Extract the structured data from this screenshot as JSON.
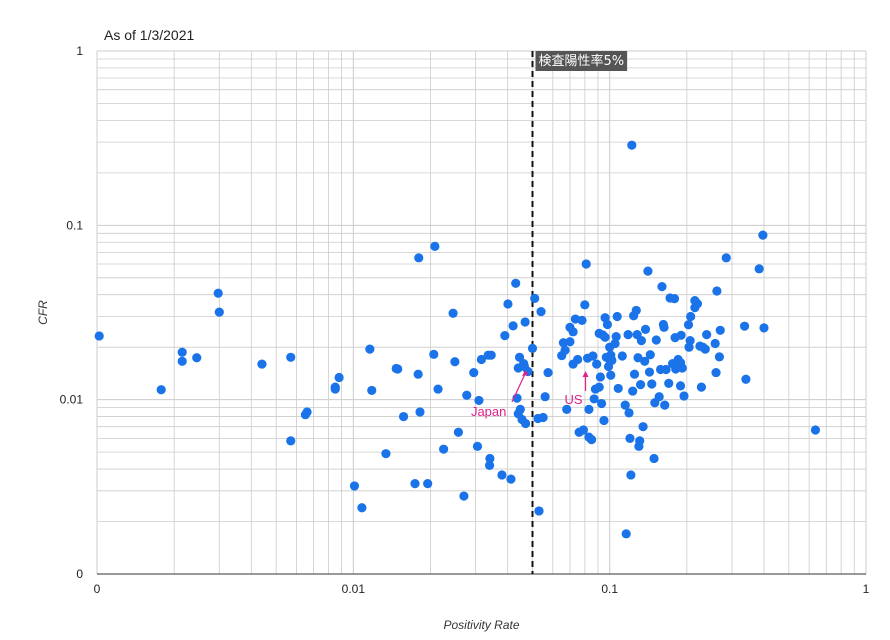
{
  "header": {
    "as_of": "As of 1/3/2021"
  },
  "colors": {
    "point": "#1a73e8",
    "grid": "#cccccc",
    "annotation": "#e0218a",
    "reference_label_bg": "#555555"
  },
  "chart_data": {
    "type": "scatter",
    "title": "",
    "xlabel": "Positivity Rate",
    "ylabel": "CFR",
    "xscale": "log",
    "yscale": "log",
    "xlim": [
      0.001,
      1
    ],
    "ylim": [
      0.001,
      1
    ],
    "xticks": [
      {
        "v": 0.001,
        "label": "0"
      },
      {
        "v": 0.01,
        "label": "0.01"
      },
      {
        "v": 0.1,
        "label": "0.1"
      },
      {
        "v": 1,
        "label": "1"
      }
    ],
    "yticks": [
      {
        "v": 0.001,
        "label": "0"
      },
      {
        "v": 0.01,
        "label": "0.01"
      },
      {
        "v": 0.1,
        "label": "0.1"
      },
      {
        "v": 1,
        "label": "1"
      }
    ],
    "grid": true,
    "legend": "none",
    "reference_line": {
      "x": 0.05,
      "label": "検査陽性率5%"
    },
    "annotations": [
      {
        "text": "Japan",
        "x": 0.048,
        "y": 0.0152
      },
      {
        "text": "US",
        "x": 0.0805,
        "y": 0.0146
      }
    ],
    "points": [
      [
        0.00102,
        0.0232
      ],
      [
        0.00178,
        0.0114
      ],
      [
        0.00215,
        0.0187
      ],
      [
        0.00215,
        0.0166
      ],
      [
        0.00245,
        0.0174
      ],
      [
        0.00297,
        0.0408
      ],
      [
        0.003,
        0.0318
      ],
      [
        0.0044,
        0.016
      ],
      [
        0.0057,
        0.0175
      ],
      [
        0.0057,
        0.0058
      ],
      [
        0.0065,
        0.0082
      ],
      [
        0.0066,
        0.0085
      ],
      [
        0.0085,
        0.0118
      ],
      [
        0.0085,
        0.0115
      ],
      [
        0.0088,
        0.0134
      ],
      [
        0.0101,
        0.0032
      ],
      [
        0.0108,
        0.0024
      ],
      [
        0.0116,
        0.0195
      ],
      [
        0.0118,
        0.0113
      ],
      [
        0.0134,
        0.0049
      ],
      [
        0.0147,
        0.0151
      ],
      [
        0.0149,
        0.015
      ],
      [
        0.0157,
        0.008
      ],
      [
        0.0174,
        0.0033
      ],
      [
        0.0179,
        0.014
      ],
      [
        0.018,
        0.0651
      ],
      [
        0.0182,
        0.0085
      ],
      [
        0.0195,
        0.0033
      ],
      [
        0.0206,
        0.0182
      ],
      [
        0.0208,
        0.0757
      ],
      [
        0.0214,
        0.0115
      ],
      [
        0.0225,
        0.0052
      ],
      [
        0.0245,
        0.0313
      ],
      [
        0.0249,
        0.0165
      ],
      [
        0.0257,
        0.0065
      ],
      [
        0.027,
        0.0028
      ],
      [
        0.0277,
        0.0106
      ],
      [
        0.0295,
        0.0143
      ],
      [
        0.0305,
        0.0054
      ],
      [
        0.0309,
        0.0099
      ],
      [
        0.0316,
        0.017
      ],
      [
        0.0336,
        0.018
      ],
      [
        0.034,
        0.0042
      ],
      [
        0.0341,
        0.0046
      ],
      [
        0.0345,
        0.018
      ],
      [
        0.038,
        0.0037
      ],
      [
        0.039,
        0.0233
      ],
      [
        0.0401,
        0.0354
      ],
      [
        0.0412,
        0.0035
      ],
      [
        0.042,
        0.0265
      ],
      [
        0.043,
        0.0465
      ],
      [
        0.0435,
        0.0102
      ],
      [
        0.044,
        0.0152
      ],
      [
        0.044,
        0.0083
      ],
      [
        0.0445,
        0.0175
      ],
      [
        0.0448,
        0.0088
      ],
      [
        0.0455,
        0.0077
      ],
      [
        0.0462,
        0.0161
      ],
      [
        0.0465,
        0.0155
      ],
      [
        0.0468,
        0.0279
      ],
      [
        0.047,
        0.0073
      ],
      [
        0.048,
        0.0145
      ],
      [
        0.05,
        0.0197
      ],
      [
        0.051,
        0.0381
      ],
      [
        0.0525,
        0.0078
      ],
      [
        0.053,
        0.0023
      ],
      [
        0.054,
        0.032
      ],
      [
        0.055,
        0.0079
      ],
      [
        0.056,
        0.0104
      ],
      [
        0.0575,
        0.0143
      ],
      [
        0.065,
        0.0179
      ],
      [
        0.066,
        0.0212
      ],
      [
        0.067,
        0.0192
      ],
      [
        0.068,
        0.0088
      ],
      [
        0.07,
        0.0215
      ],
      [
        0.07,
        0.026
      ],
      [
        0.072,
        0.0245
      ],
      [
        0.072,
        0.016
      ],
      [
        0.0735,
        0.029
      ],
      [
        0.075,
        0.017
      ],
      [
        0.076,
        0.0065
      ],
      [
        0.078,
        0.0285
      ],
      [
        0.079,
        0.0067
      ],
      [
        0.08,
        0.035
      ],
      [
        0.081,
        0.06
      ],
      [
        0.082,
        0.0173
      ],
      [
        0.083,
        0.0088
      ],
      [
        0.083,
        0.0061
      ],
      [
        0.085,
        0.0059
      ],
      [
        0.086,
        0.0178
      ],
      [
        0.087,
        0.0101
      ],
      [
        0.088,
        0.0115
      ],
      [
        0.089,
        0.016
      ],
      [
        0.091,
        0.0118
      ],
      [
        0.091,
        0.024
      ],
      [
        0.092,
        0.0135
      ],
      [
        0.093,
        0.0095
      ],
      [
        0.094,
        0.0235
      ],
      [
        0.095,
        0.0076
      ],
      [
        0.096,
        0.0295
      ],
      [
        0.096,
        0.0228
      ],
      [
        0.097,
        0.0175
      ],
      [
        0.098,
        0.027
      ],
      [
        0.099,
        0.0155
      ],
      [
        0.1,
        0.02
      ],
      [
        0.1,
        0.017
      ],
      [
        0.101,
        0.0138
      ],
      [
        0.101,
        0.018
      ],
      [
        0.102,
        0.0168
      ],
      [
        0.105,
        0.021
      ],
      [
        0.106,
        0.023
      ],
      [
        0.107,
        0.03
      ],
      [
        0.108,
        0.0116
      ],
      [
        0.112,
        0.0178
      ],
      [
        0.115,
        0.0093
      ],
      [
        0.116,
        0.0017
      ],
      [
        0.118,
        0.0236
      ],
      [
        0.119,
        0.0084
      ],
      [
        0.12,
        0.006
      ],
      [
        0.121,
        0.0037
      ],
      [
        0.122,
        0.2883
      ],
      [
        0.123,
        0.0112
      ],
      [
        0.124,
        0.0303
      ],
      [
        0.125,
        0.014
      ],
      [
        0.127,
        0.0325
      ],
      [
        0.128,
        0.0236
      ],
      [
        0.129,
        0.0174
      ],
      [
        0.13,
        0.0054
      ],
      [
        0.131,
        0.0058
      ],
      [
        0.132,
        0.0122
      ],
      [
        0.133,
        0.0218
      ],
      [
        0.135,
        0.007
      ],
      [
        0.137,
        0.0166
      ],
      [
        0.138,
        0.0253
      ],
      [
        0.141,
        0.0546
      ],
      [
        0.143,
        0.0144
      ],
      [
        0.144,
        0.0181
      ],
      [
        0.146,
        0.0123
      ],
      [
        0.149,
        0.0046
      ],
      [
        0.15,
        0.0096
      ],
      [
        0.152,
        0.022
      ],
      [
        0.156,
        0.0104
      ],
      [
        0.158,
        0.0149
      ],
      [
        0.16,
        0.0445
      ],
      [
        0.162,
        0.027
      ],
      [
        0.163,
        0.026
      ],
      [
        0.164,
        0.0093
      ],
      [
        0.166,
        0.0149
      ],
      [
        0.17,
        0.0124
      ],
      [
        0.172,
        0.0383
      ],
      [
        0.176,
        0.0161
      ],
      [
        0.179,
        0.038
      ],
      [
        0.18,
        0.0227
      ],
      [
        0.181,
        0.015
      ],
      [
        0.182,
        0.0155
      ],
      [
        0.185,
        0.017
      ],
      [
        0.189,
        0.0163
      ],
      [
        0.189,
        0.012
      ],
      [
        0.19,
        0.0234
      ],
      [
        0.192,
        0.0152
      ],
      [
        0.195,
        0.0105
      ],
      [
        0.203,
        0.0269
      ],
      [
        0.204,
        0.02
      ],
      [
        0.206,
        0.0218
      ],
      [
        0.207,
        0.03
      ],
      [
        0.215,
        0.037
      ],
      [
        0.215,
        0.0337
      ],
      [
        0.22,
        0.0355
      ],
      [
        0.225,
        0.0203
      ],
      [
        0.228,
        0.0118
      ],
      [
        0.231,
        0.02
      ],
      [
        0.236,
        0.0195
      ],
      [
        0.239,
        0.0236
      ],
      [
        0.258,
        0.021
      ],
      [
        0.26,
        0.0143
      ],
      [
        0.262,
        0.042
      ],
      [
        0.268,
        0.0176
      ],
      [
        0.27,
        0.025
      ],
      [
        0.285,
        0.0651
      ],
      [
        0.336,
        0.0264
      ],
      [
        0.34,
        0.0131
      ],
      [
        0.383,
        0.0563
      ],
      [
        0.396,
        0.0879
      ],
      [
        0.4,
        0.0258
      ],
      [
        0.635,
        0.0067
      ]
    ]
  }
}
